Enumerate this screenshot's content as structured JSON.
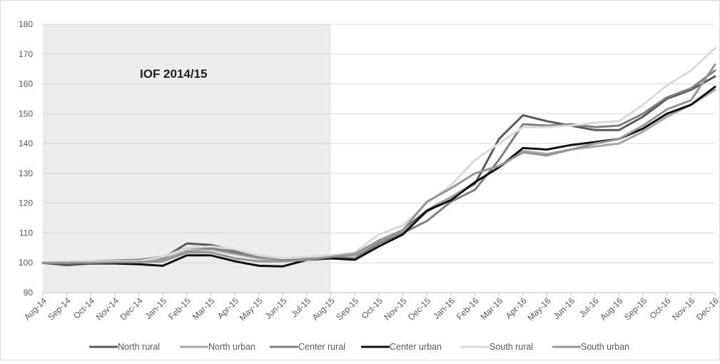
{
  "chart_data": {
    "type": "line",
    "title": "",
    "xlabel": "",
    "ylabel": "",
    "ylim": [
      90,
      180
    ],
    "yticks": [
      90,
      100,
      110,
      120,
      130,
      140,
      150,
      160,
      170,
      180
    ],
    "grid": "horizontal",
    "legend_position": "bottom",
    "shaded_region": {
      "label": "IOF 2014/15",
      "from": "Aug-14",
      "to": "Aug-15",
      "color": "#ececec"
    },
    "categories": [
      "Aug-14",
      "Sep-14",
      "Oct-14",
      "Nov-14",
      "Dec-14",
      "Jan-15",
      "Feb-15",
      "Mar-15",
      "Apr-15",
      "May-15",
      "Jun-15",
      "Jul-15",
      "Aug-15",
      "Sep-15",
      "Oct-15",
      "Nov-15",
      "Dec-15",
      "Jan-16",
      "Feb-16",
      "Mar-16",
      "Apr-16",
      "May-16",
      "Jun-16",
      "Jul-16",
      "Aug-16",
      "Sep-16",
      "Oct-16",
      "Nov-16",
      "Dec-16"
    ],
    "series": [
      {
        "name": "North rural",
        "color": "#595959",
        "width": 3,
        "values": [
          100,
          99.2,
          99.8,
          100.5,
          100.6,
          101.5,
          106.5,
          106,
          104,
          102,
          101,
          101.5,
          102,
          101.5,
          107,
          111,
          117.5,
          122,
          126.5,
          141.5,
          149.5,
          147.5,
          146,
          144.5,
          144.5,
          149,
          155,
          158,
          162.5
        ]
      },
      {
        "name": "North urban",
        "color": "#a6a6a6",
        "width": 3,
        "values": [
          100,
          100,
          100.2,
          100.5,
          100.3,
          101,
          104,
          104.5,
          103,
          101.5,
          100.5,
          101,
          102,
          102.5,
          107,
          110.5,
          117,
          122,
          127,
          132,
          137.5,
          136.5,
          138,
          139,
          140,
          144,
          149,
          153,
          158
        ]
      },
      {
        "name": "Center rural",
        "color": "#7f7f7f",
        "width": 3,
        "values": [
          100,
          100.3,
          100.5,
          100.8,
          101,
          102,
          105,
          105,
          103.5,
          102,
          101.5,
          101.5,
          102,
          101.5,
          106.5,
          110,
          114,
          120.5,
          124.5,
          134.5,
          146.5,
          146,
          146.5,
          145.5,
          146,
          150,
          155.5,
          158.5,
          164.5
        ]
      },
      {
        "name": "Center urban",
        "color": "#111111",
        "width": 3,
        "values": [
          100,
          100,
          99.8,
          99.8,
          99.5,
          99,
          102.5,
          102.5,
          100.5,
          99,
          98.8,
          101,
          101.5,
          101,
          105.5,
          109.5,
          117.5,
          121,
          127,
          132,
          138.5,
          138,
          139.5,
          140.5,
          141.5,
          145,
          150,
          153,
          159
        ]
      },
      {
        "name": "South rural",
        "color": "#d9d9d9",
        "width": 3,
        "values": [
          100,
          100.3,
          100.5,
          100.6,
          100.6,
          102,
          105,
          105.5,
          104.5,
          102.5,
          101.5,
          102,
          102.5,
          103.5,
          109.5,
          112.5,
          120,
          126,
          134.5,
          140,
          145.5,
          145.5,
          146,
          147,
          147.5,
          153,
          159.5,
          164.5,
          172
        ]
      },
      {
        "name": "South urban",
        "color": "#959595",
        "width": 3,
        "values": [
          100,
          100,
          100,
          100.2,
          100.2,
          100.5,
          103.5,
          103.5,
          101.5,
          100.5,
          100.5,
          101,
          102,
          103,
          107.5,
          111,
          120.5,
          125,
          130,
          132.5,
          137,
          136,
          138,
          140,
          141.5,
          146,
          151.5,
          154.5,
          166.5
        ]
      }
    ]
  }
}
